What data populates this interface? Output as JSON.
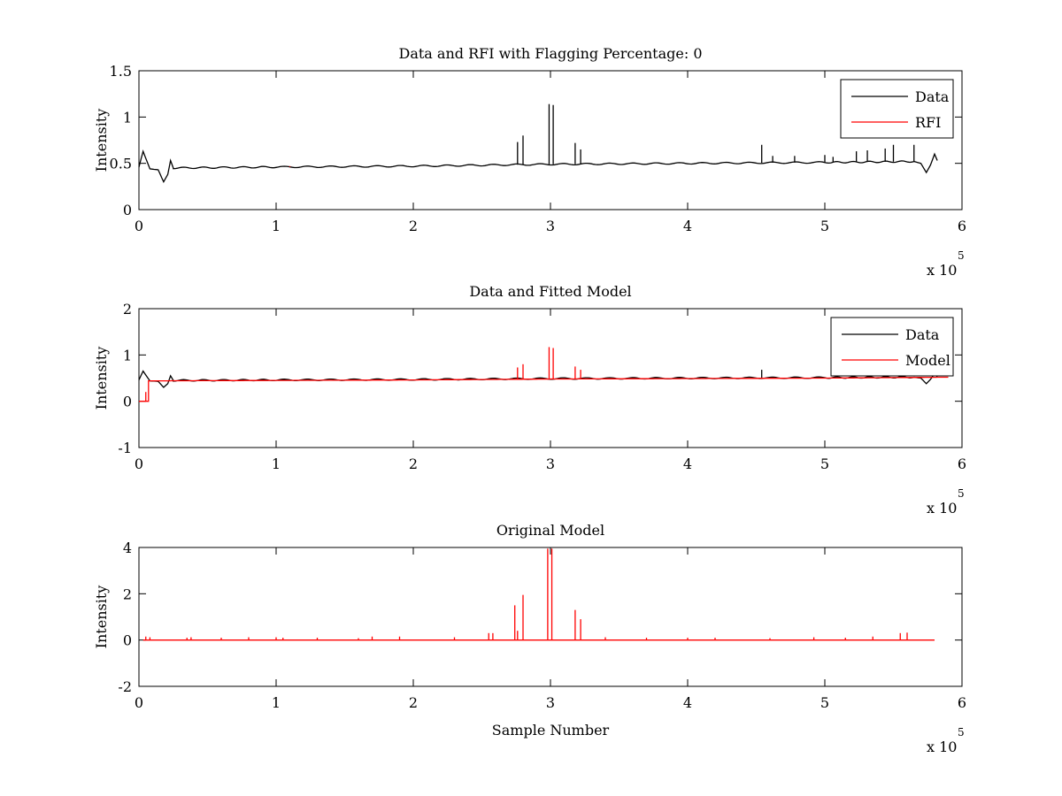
{
  "chart_data": [
    {
      "type": "line",
      "title": "Data and RFI with Flagging Percentage: 0",
      "xlabel": "",
      "ylabel": "Intensity",
      "xlim": [
        0,
        600000
      ],
      "ylim": [
        0,
        1.5
      ],
      "xticks": [
        "0",
        "1",
        "2",
        "3",
        "4",
        "5",
        "6"
      ],
      "yticks": [
        "0",
        "0.5",
        "1",
        "1.5"
      ],
      "x_multiplier": "x 10",
      "x_exponent": "5",
      "legend": {
        "position": "top-right",
        "entries": [
          "Data",
          "RFI"
        ]
      },
      "series": [
        {
          "name": "Data",
          "color": "#000000",
          "baseline": [
            [
              0,
              0.46
            ],
            [
              3000,
              0.63
            ],
            [
              8000,
              0.44
            ],
            [
              14000,
              0.43
            ],
            [
              18000,
              0.3
            ],
            [
              21000,
              0.38
            ],
            [
              23000,
              0.53
            ],
            [
              25000,
              0.45
            ],
            [
              100000,
              0.46
            ],
            [
              200000,
              0.47
            ],
            [
              300000,
              0.49
            ],
            [
              400000,
              0.5
            ],
            [
              500000,
              0.51
            ],
            [
              565000,
              0.52
            ],
            [
              570000,
              0.5
            ],
            [
              574000,
              0.4
            ],
            [
              577000,
              0.48
            ],
            [
              580000,
              0.6
            ],
            [
              582000,
              0.53
            ]
          ],
          "spikes": [
            [
              276000,
              0.73
            ],
            [
              280000,
              0.8
            ],
            [
              299000,
              1.14
            ],
            [
              302000,
              1.13
            ],
            [
              318000,
              0.72
            ],
            [
              322000,
              0.65
            ],
            [
              454000,
              0.7
            ],
            [
              462000,
              0.58
            ],
            [
              478000,
              0.58
            ],
            [
              500000,
              0.59
            ],
            [
              506000,
              0.57
            ],
            [
              523000,
              0.63
            ],
            [
              531000,
              0.64
            ],
            [
              544000,
              0.66
            ],
            [
              550000,
              0.7
            ],
            [
              565000,
              0.7
            ]
          ]
        },
        {
          "name": "RFI",
          "color": "#ff0000",
          "baseline": [],
          "spikes": [
            [
              110000,
              0.47
            ]
          ]
        }
      ]
    },
    {
      "type": "line",
      "title": "Data and Fitted Model",
      "xlabel": "",
      "ylabel": "Intensity",
      "xlim": [
        0,
        600000
      ],
      "ylim": [
        -1,
        2
      ],
      "xticks": [
        "0",
        "1",
        "2",
        "3",
        "4",
        "5",
        "6"
      ],
      "yticks": [
        "-1",
        "0",
        "1",
        "2"
      ],
      "x_multiplier": "x 10",
      "x_exponent": "5",
      "legend": {
        "position": "top-right",
        "entries": [
          "Data",
          "Model"
        ]
      },
      "series": [
        {
          "name": "Data",
          "color": "#000000",
          "baseline": [
            [
              0,
              0.46
            ],
            [
              3000,
              0.65
            ],
            [
              8000,
              0.44
            ],
            [
              14000,
              0.43
            ],
            [
              18000,
              0.3
            ],
            [
              21000,
              0.38
            ],
            [
              23000,
              0.55
            ],
            [
              25000,
              0.45
            ],
            [
              100000,
              0.46
            ],
            [
              200000,
              0.47
            ],
            [
              300000,
              0.49
            ],
            [
              400000,
              0.5
            ],
            [
              500000,
              0.51
            ],
            [
              565000,
              0.52
            ],
            [
              570000,
              0.5
            ],
            [
              574000,
              0.38
            ],
            [
              577000,
              0.47
            ],
            [
              580000,
              0.6
            ],
            [
              582000,
              0.53
            ]
          ],
          "spikes": [
            [
              454000,
              0.68
            ]
          ]
        },
        {
          "name": "Model",
          "color": "#ff0000",
          "baseline": [
            [
              0,
              0.0
            ],
            [
              7000,
              0.0
            ],
            [
              7000,
              0.44
            ],
            [
              100000,
              0.45
            ],
            [
              200000,
              0.46
            ],
            [
              300000,
              0.48
            ],
            [
              400000,
              0.49
            ],
            [
              500000,
              0.5
            ],
            [
              590000,
              0.52
            ]
          ],
          "spikes": [
            [
              5000,
              0.2
            ],
            [
              276000,
              0.73
            ],
            [
              280000,
              0.8
            ],
            [
              299000,
              1.17
            ],
            [
              302000,
              1.15
            ],
            [
              318000,
              0.75
            ],
            [
              322000,
              0.68
            ]
          ]
        }
      ]
    },
    {
      "type": "line",
      "title": "Original Model",
      "xlabel": "Sample Number",
      "ylabel": "Intensity",
      "xlim": [
        0,
        600000
      ],
      "ylim": [
        -2,
        4
      ],
      "xticks": [
        "0",
        "1",
        "2",
        "3",
        "4",
        "5",
        "6"
      ],
      "yticks": [
        "-2",
        "0",
        "2",
        "4"
      ],
      "x_multiplier": "x 10",
      "x_exponent": "5",
      "legend": null,
      "series": [
        {
          "name": "",
          "color": "#ff0000",
          "baseline": [
            [
              3000,
              0.0
            ],
            [
              580000,
              0.0
            ]
          ],
          "spikes": [
            [
              5000,
              0.15
            ],
            [
              8000,
              0.12
            ],
            [
              35000,
              0.1
            ],
            [
              38000,
              0.12
            ],
            [
              60000,
              0.1
            ],
            [
              80000,
              0.12
            ],
            [
              100000,
              0.12
            ],
            [
              105000,
              0.1
            ],
            [
              130000,
              0.1
            ],
            [
              160000,
              0.08
            ],
            [
              170000,
              0.15
            ],
            [
              190000,
              0.15
            ],
            [
              230000,
              0.12
            ],
            [
              255000,
              0.3
            ],
            [
              258000,
              0.3
            ],
            [
              274000,
              1.5
            ],
            [
              276000,
              0.4
            ],
            [
              280000,
              1.95
            ],
            [
              298000,
              3.95
            ],
            [
              301000,
              3.95
            ],
            [
              318000,
              1.3
            ],
            [
              322000,
              0.9
            ],
            [
              340000,
              0.12
            ],
            [
              370000,
              0.1
            ],
            [
              400000,
              0.1
            ],
            [
              420000,
              0.1
            ],
            [
              460000,
              0.08
            ],
            [
              492000,
              0.12
            ],
            [
              515000,
              0.1
            ],
            [
              535000,
              0.15
            ],
            [
              555000,
              0.3
            ],
            [
              560000,
              0.32
            ]
          ]
        }
      ]
    }
  ]
}
